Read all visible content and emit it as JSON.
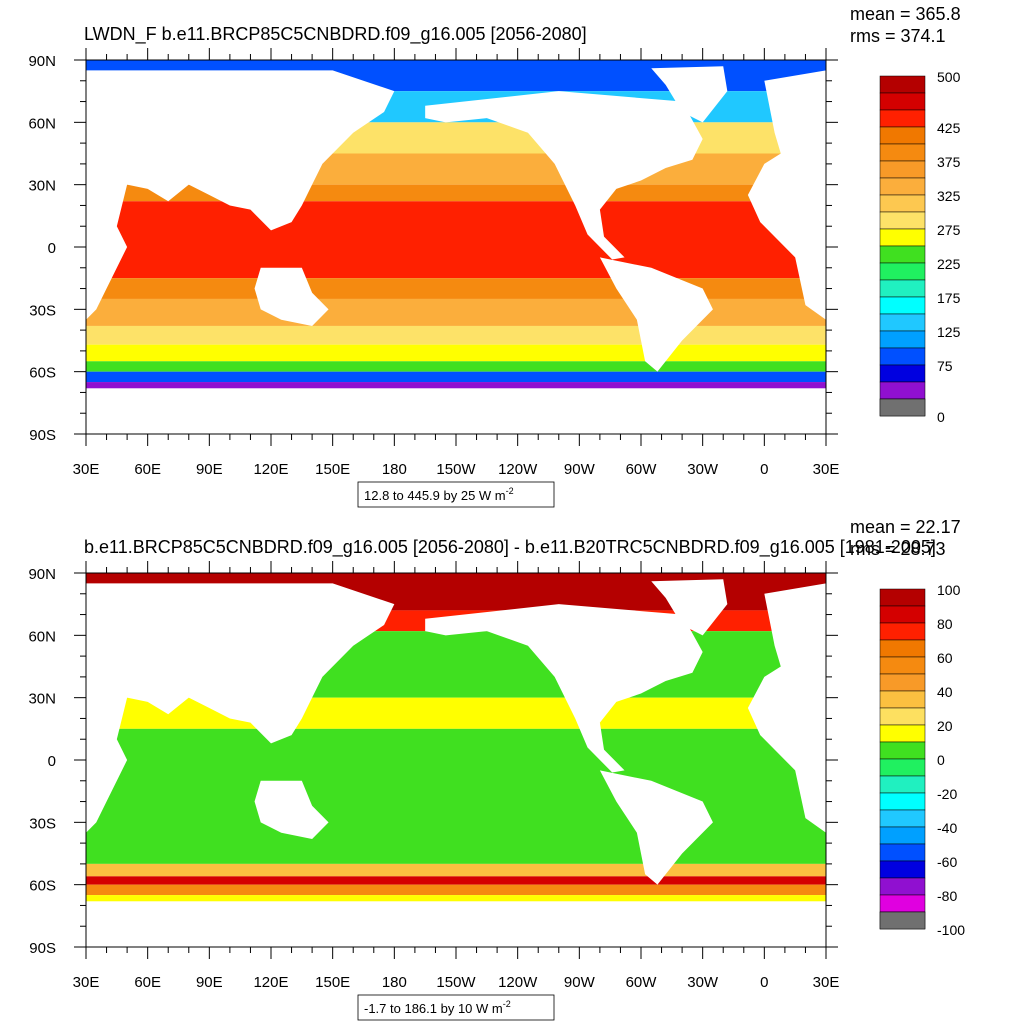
{
  "panels": [
    {
      "title": "LWDN_F b.e11.BRCP85C5CNBDRD.f09_g16.005 [2056-2080]",
      "mean": "mean = 365.8",
      "rms": "rms = 374.1",
      "lat_labels": [
        "90N",
        "60N",
        "30N",
        "0",
        "30S",
        "60S",
        "90S"
      ],
      "lon_labels": [
        "30E",
        "60E",
        "90E",
        "120E",
        "150E",
        "180",
        "150W",
        "120W",
        "90W",
        "60W",
        "30W",
        "0",
        "30E"
      ],
      "colorbar_range": [
        0,
        500
      ],
      "colorbar_labels": [
        500,
        425,
        375,
        325,
        275,
        225,
        175,
        125,
        75,
        0
      ],
      "colorbar_colors": [
        "#b40000",
        "#d40000",
        "#ff2000",
        "#f07800",
        "#f58a10",
        "#f89a28",
        "#fbae3c",
        "#fdc850",
        "#fde268",
        "#ffff00",
        "#40e020",
        "#20f060",
        "#20f0c0",
        "#00ffff",
        "#20c8ff",
        "#00a0ff",
        "#0050ff",
        "#0000e0",
        "#9010d0",
        "#d0d0d0"
      ],
      "info": "12.8 to 445.9 by 25  W m",
      "info_sup": "-2"
    },
    {
      "title": "b.e11.BRCP85C5CNBDRD.f09_g16.005 [2056-2080] - b.e11.B20TRC5CNBDRD.f09_g16.005 [1981-2005]",
      "mean": "mean = 22.17",
      "rms": "rms = 28.73",
      "lat_labels": [
        "90N",
        "60N",
        "30N",
        "0",
        "30S",
        "60S",
        "90S"
      ],
      "lon_labels": [
        "30E",
        "60E",
        "90E",
        "120E",
        "150E",
        "180",
        "150W",
        "120W",
        "90W",
        "60W",
        "30W",
        "0",
        "30E"
      ],
      "colorbar_range": [
        -100,
        100
      ],
      "colorbar_labels": [
        100,
        80,
        60,
        40,
        20,
        0,
        -20,
        -40,
        -60,
        -80,
        -100
      ],
      "colorbar_colors": [
        "#b40000",
        "#d40000",
        "#ff2000",
        "#f07800",
        "#f58a10",
        "#f89a28",
        "#fbc040",
        "#fde060",
        "#ffff00",
        "#40e020",
        "#20f060",
        "#20f0c0",
        "#00ffff",
        "#20c8ff",
        "#00a0ff",
        "#0050ff",
        "#0000e0",
        "#9010d0",
        "#e000e0",
        "#d0d0d0"
      ],
      "info": "-1.7 to 186.1 by 10  W m",
      "info_sup": "-2"
    }
  ]
}
